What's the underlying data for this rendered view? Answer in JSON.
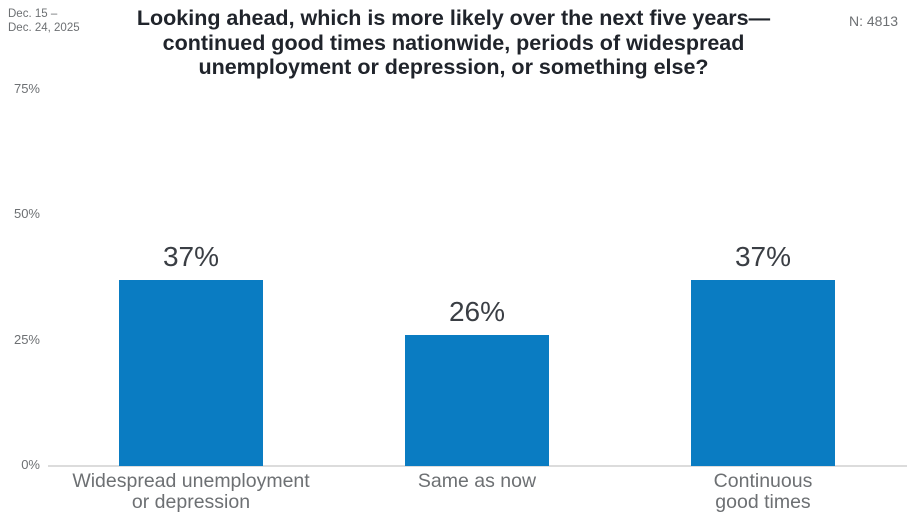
{
  "header": {
    "date_line1": "Dec. 15 –",
    "date_line2": "Dec. 24, 2025",
    "sample_label": "N: 4813"
  },
  "chart_data": {
    "type": "bar",
    "title": "Looking ahead, which is more likely over the next five years— continued good times nationwide, periods of widespread unemployment or depression, or something else?",
    "categories": [
      "Widespread unemployment\nor depression",
      "Same as now",
      "Continuous\ngood times"
    ],
    "values": [
      37,
      26,
      37
    ],
    "value_labels": [
      "37%",
      "26%",
      "37%"
    ],
    "yticks": [
      0,
      25,
      50,
      75
    ],
    "ytick_labels": [
      "0%",
      "25%",
      "50%",
      "75%"
    ],
    "ylim": [
      0,
      75
    ],
    "xlabel": "",
    "ylabel": "",
    "grid": false,
    "legend": "none",
    "bar_color": "#0a7cc2",
    "value_label_color": "#3a3e44",
    "axis_label_color": "#6d7073",
    "axis_line_color": "#dcdcdc"
  }
}
